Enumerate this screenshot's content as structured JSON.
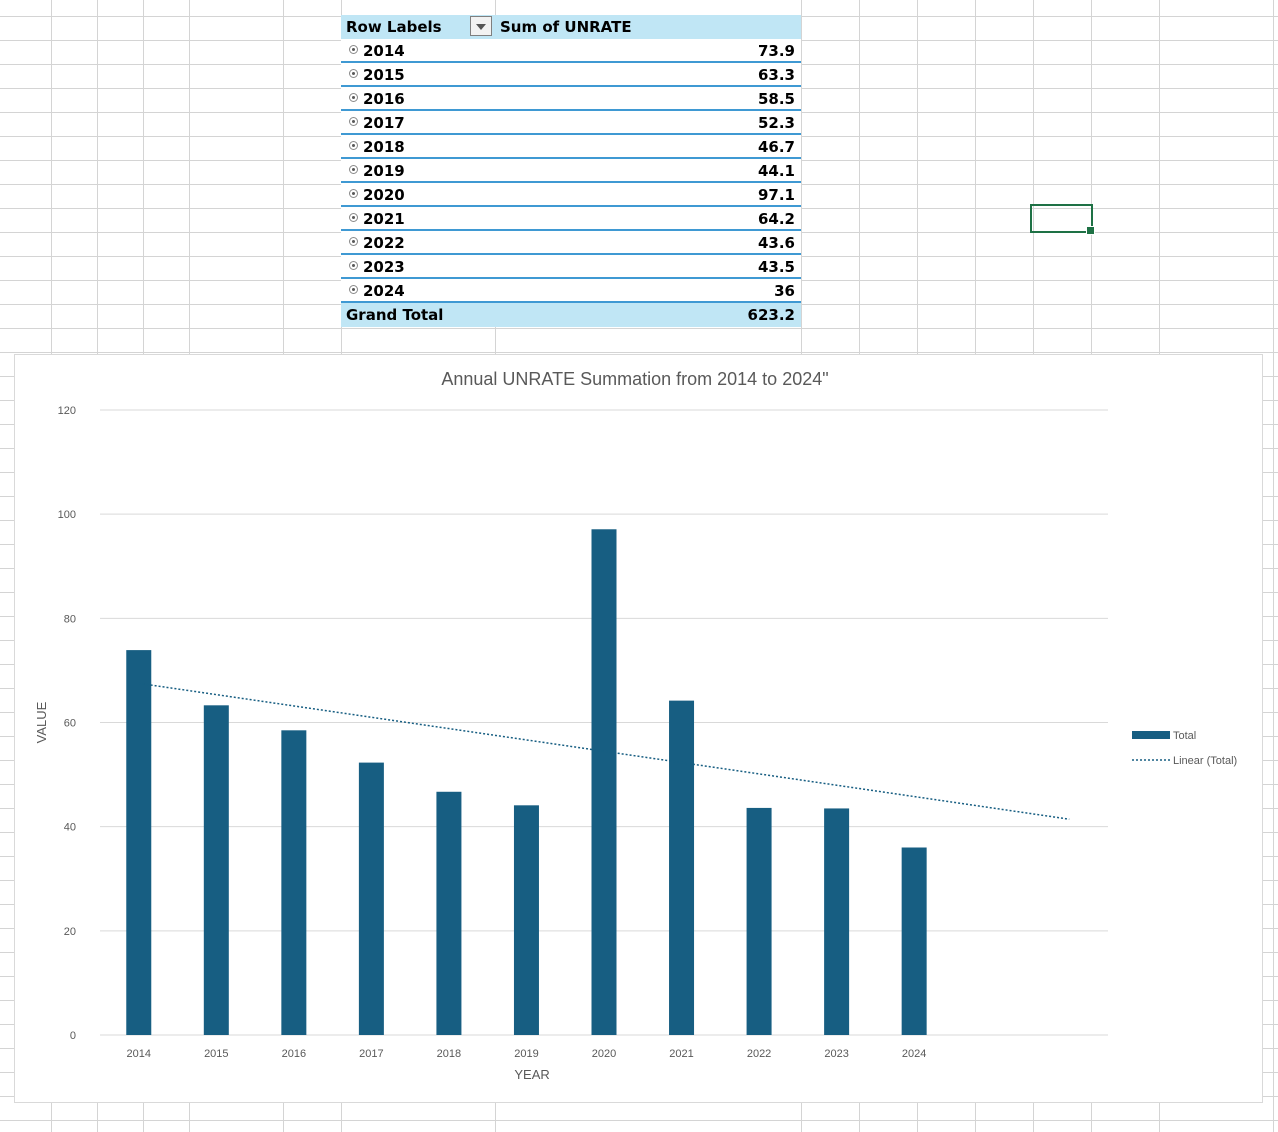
{
  "pivot": {
    "header_row_labels": "Row Labels",
    "header_value": "Sum of UNRATE",
    "rows": [
      {
        "label": "2014",
        "value": "73.9"
      },
      {
        "label": "2015",
        "value": "63.3"
      },
      {
        "label": "2016",
        "value": "58.5"
      },
      {
        "label": "2017",
        "value": "52.3"
      },
      {
        "label": "2018",
        "value": "46.7"
      },
      {
        "label": "2019",
        "value": "44.1"
      },
      {
        "label": "2020",
        "value": "97.1"
      },
      {
        "label": "2021",
        "value": "64.2"
      },
      {
        "label": "2022",
        "value": "43.6"
      },
      {
        "label": "2023",
        "value": "43.5"
      },
      {
        "label": "2024",
        "value": "36"
      }
    ],
    "total_label": "Grand Total",
    "total_value": "623.2"
  },
  "colors": {
    "bar": "#175e82",
    "trendline": "#175e82",
    "pivot_header_bg": "#c0e6f5",
    "pivot_border": "#3f99d3",
    "selection": "#1e7145"
  },
  "chart_data": {
    "type": "bar",
    "title": "Annual UNRATE Summation from 2014 to 2024\"",
    "xlabel": "YEAR",
    "ylabel": "VALUE",
    "categories": [
      "2014",
      "2015",
      "2016",
      "2017",
      "2018",
      "2019",
      "2020",
      "2021",
      "2022",
      "2023",
      "2024"
    ],
    "series": [
      {
        "name": "Total",
        "values": [
          73.9,
          63.3,
          58.5,
          52.3,
          46.7,
          44.1,
          97.1,
          64.2,
          43.6,
          43.5,
          36
        ]
      }
    ],
    "trendline": {
      "name": "Linear (Total)",
      "type": "linear",
      "style": "dotted"
    },
    "ylim": [
      0,
      120
    ],
    "yticks": [
      "0",
      "20",
      "40",
      "60",
      "80",
      "100",
      "120"
    ],
    "grid": "horizontal",
    "legend_position": "right"
  }
}
